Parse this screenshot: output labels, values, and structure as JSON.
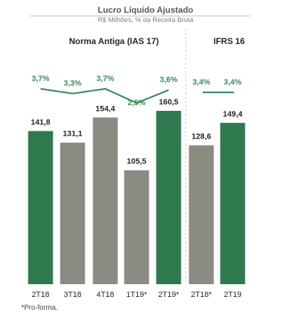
{
  "header": {
    "title": "Lucro Líquido Ajustado",
    "subtitle": "R$ Milhões, % da Receita Bruta"
  },
  "sections": {
    "left": "Norma Antiga (IAS 17)",
    "right": "IFRS 16"
  },
  "footnote": "*Pro-forma.",
  "colors": {
    "green": "#2e7a4e",
    "gray": "#8b8b83",
    "line": "#3a8a5a",
    "divider": "#c8c8c8",
    "text": "#262626",
    "pct_text": "#3a8a5a"
  },
  "chart_data": {
    "type": "bar",
    "title": "Lucro Líquido Ajustado",
    "subtitle": "R$ Milhões, % da Receita Bruta",
    "categories": [
      "2T18",
      "3T18",
      "4T18",
      "1T19*",
      "2T19*",
      "2T18*",
      "2T19"
    ],
    "values": [
      141.8,
      131.1,
      154.4,
      105.5,
      160.5,
      128.6,
      149.4
    ],
    "value_labels": [
      "141,8",
      "131,1",
      "154,4",
      "105,5",
      "160,5",
      "128,6",
      "149,4"
    ],
    "bar_colors": [
      "green",
      "gray",
      "gray",
      "gray",
      "green",
      "gray",
      "green"
    ],
    "groups": [
      {
        "label": "Norma Antiga (IAS 17)",
        "categories": [
          "2T18",
          "3T18",
          "4T18",
          "1T19*",
          "2T19*"
        ]
      },
      {
        "label": "IFRS 16",
        "categories": [
          "2T18*",
          "2T19"
        ]
      }
    ],
    "margin_line": {
      "groups": [
        {
          "values": [
            3.7,
            3.3,
            3.7,
            2.5,
            3.6
          ],
          "labels": [
            "3,7%",
            "3,3%",
            "3,7%",
            "2,5%",
            "3,6%"
          ]
        },
        {
          "values": [
            3.4,
            3.4
          ],
          "labels": [
            "3,4%",
            "3,4%"
          ]
        }
      ]
    },
    "xlabel": "",
    "ylabel": "",
    "grid": false,
    "legend": "none"
  }
}
